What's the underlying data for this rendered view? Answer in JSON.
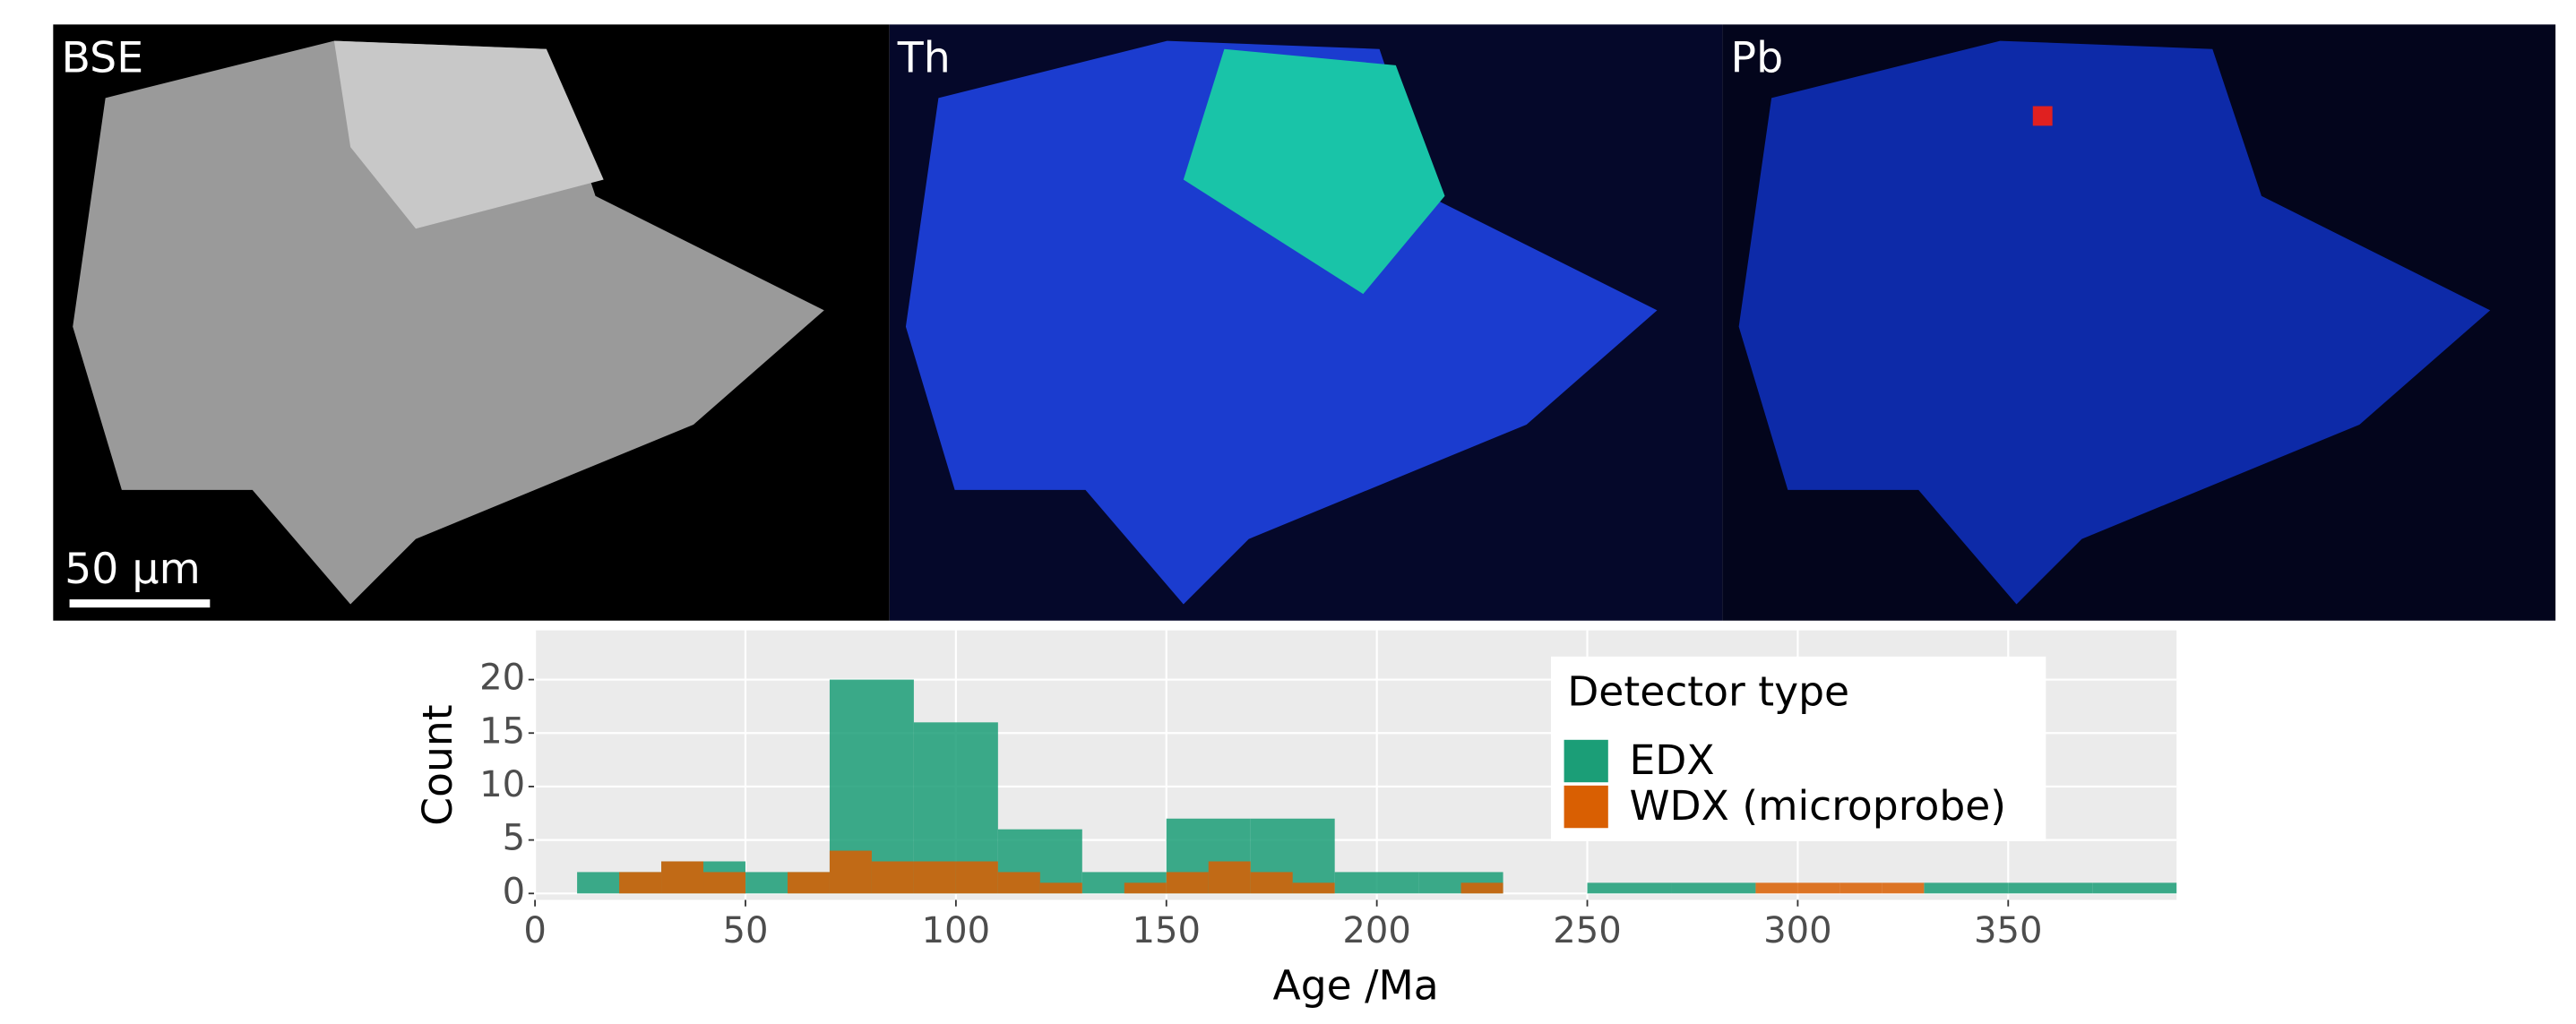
{
  "panels": [
    {
      "label": "BSE"
    },
    {
      "label": "Th"
    },
    {
      "label": "Pb"
    }
  ],
  "scale_bar": "50 µm",
  "chart_data": {
    "type": "histogram",
    "xlabel": "Age /Ma",
    "ylabel": "Count",
    "legend_title": "Detector type",
    "legend_position": "top-right",
    "grid": true,
    "xlim": [
      0,
      390
    ],
    "xticks": [
      0,
      50,
      100,
      150,
      200,
      250,
      300,
      350
    ],
    "ylim": [
      -0.6,
      24.6
    ],
    "yticks": [
      0,
      5,
      10,
      15,
      20
    ],
    "series": [
      {
        "name": "EDX",
        "color": "#1b9e77",
        "bins": [
          10,
          30,
          50,
          70,
          90,
          110,
          130,
          150,
          170,
          190,
          210,
          230,
          250,
          270,
          290,
          310,
          330,
          350,
          370,
          390
        ],
        "values": [
          2,
          3,
          2,
          20,
          16,
          6,
          2,
          7,
          7,
          2,
          2,
          0,
          1,
          1,
          0,
          0,
          1,
          1,
          1
        ]
      },
      {
        "name": "WDX (microprobe)",
        "color": "#d95f02",
        "bins": [
          20,
          30,
          40,
          50,
          60,
          70,
          80,
          90,
          100,
          110,
          120,
          130,
          140,
          150,
          160,
          170,
          180,
          190,
          200,
          210,
          220,
          230,
          240,
          250,
          260,
          270,
          280,
          290,
          300,
          310,
          320,
          330
        ],
        "values": [
          2,
          3,
          2,
          0,
          2,
          4,
          3,
          3,
          3,
          2,
          1,
          0,
          1,
          2,
          3,
          2,
          1,
          0,
          0,
          0,
          1,
          0,
          0,
          0,
          0,
          0,
          0,
          1,
          1,
          1,
          1
        ]
      }
    ]
  }
}
